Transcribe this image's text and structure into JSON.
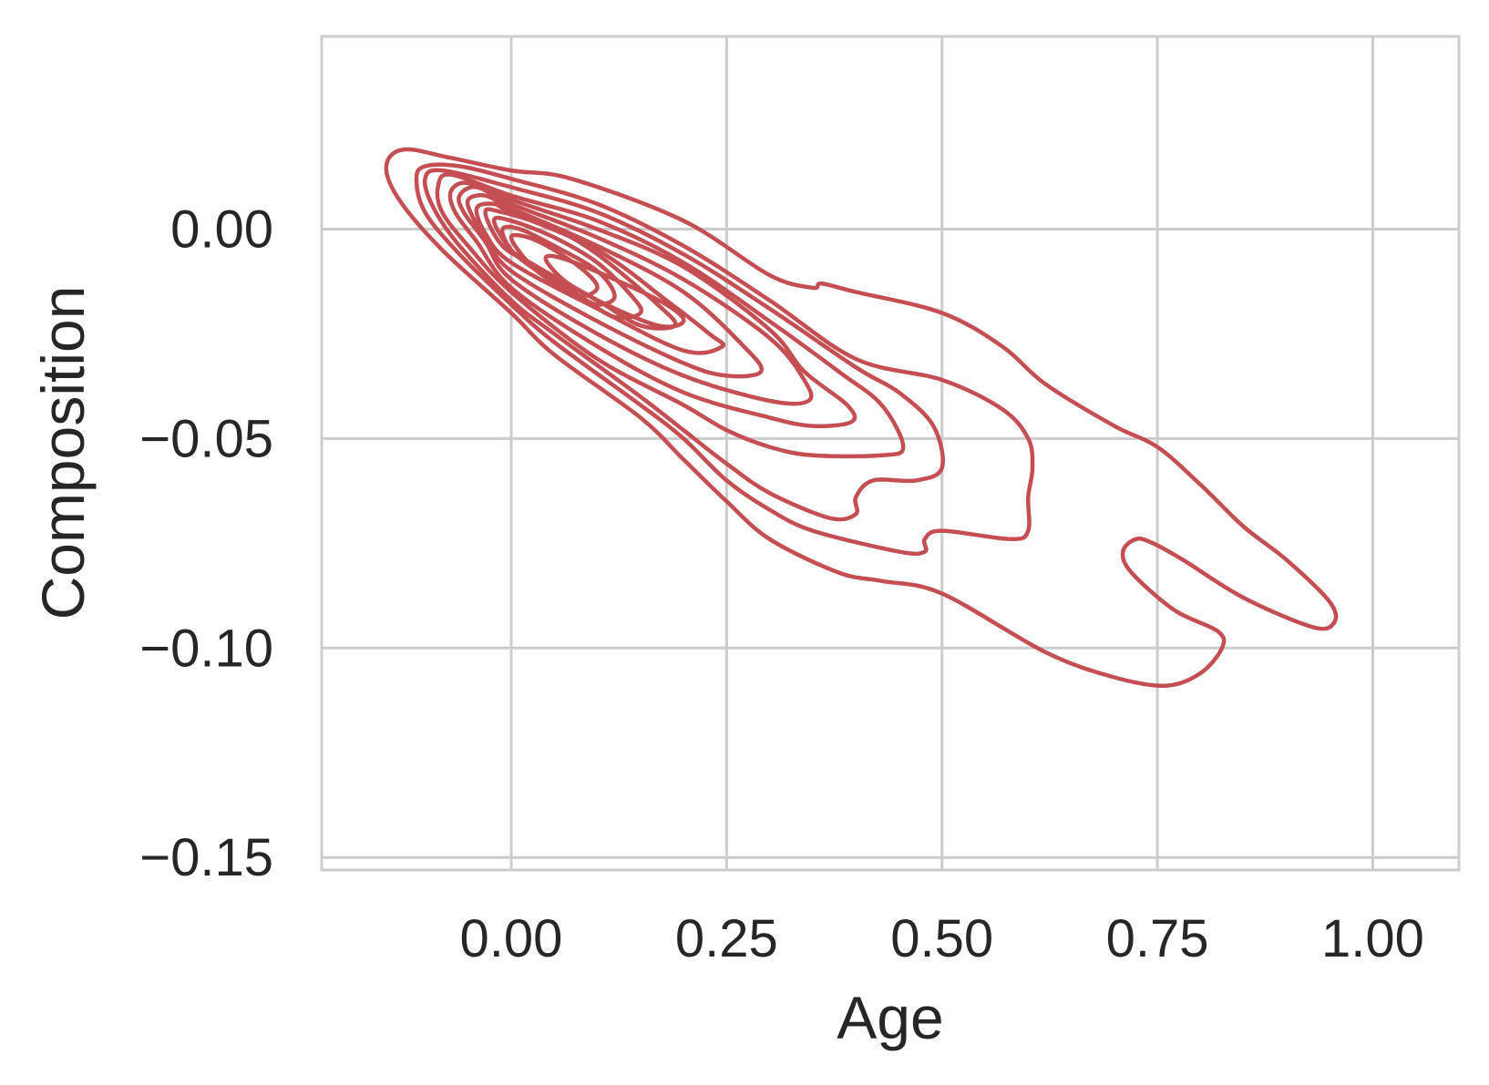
{
  "chart_data": {
    "type": "contour",
    "title": "",
    "xlabel": "Age",
    "ylabel": "Composition",
    "xlim": [
      -0.22,
      1.1
    ],
    "ylim": [
      -0.153,
      0.046
    ],
    "xticks": [
      0.0,
      0.25,
      0.5,
      0.75,
      1.0
    ],
    "xtick_labels": [
      "0.00",
      "0.25",
      "0.50",
      "0.75",
      "1.00"
    ],
    "yticks": [
      0.0,
      -0.05,
      -0.1,
      -0.15
    ],
    "ytick_labels": [
      "0.00",
      "−0.05",
      "−0.10",
      "−0.15"
    ],
    "grid": true,
    "line_color": "#c44e52",
    "levels": [
      {
        "level": 1,
        "points": [
          [
            -0.145,
            0.015
          ],
          [
            -0.125,
            0.019
          ],
          [
            -0.07,
            0.017
          ],
          [
            0.0,
            0.014
          ],
          [
            0.07,
            0.012
          ],
          [
            0.2,
            0.002
          ],
          [
            0.3,
            -0.011
          ],
          [
            0.35,
            -0.014
          ],
          [
            0.36,
            -0.013
          ],
          [
            0.4,
            -0.015
          ],
          [
            0.5,
            -0.02
          ],
          [
            0.57,
            -0.028
          ],
          [
            0.62,
            -0.037
          ],
          [
            0.7,
            -0.047
          ],
          [
            0.75,
            -0.052
          ],
          [
            0.8,
            -0.061
          ],
          [
            0.85,
            -0.071
          ],
          [
            0.9,
            -0.079
          ],
          [
            0.95,
            -0.089
          ],
          [
            0.955,
            -0.094
          ],
          [
            0.93,
            -0.095
          ],
          [
            0.85,
            -0.088
          ],
          [
            0.78,
            -0.079
          ],
          [
            0.745,
            -0.075
          ],
          [
            0.725,
            -0.074
          ],
          [
            0.71,
            -0.077
          ],
          [
            0.72,
            -0.082
          ],
          [
            0.77,
            -0.091
          ],
          [
            0.82,
            -0.096
          ],
          [
            0.825,
            -0.1
          ],
          [
            0.8,
            -0.106
          ],
          [
            0.76,
            -0.109
          ],
          [
            0.7,
            -0.107
          ],
          [
            0.62,
            -0.101
          ],
          [
            0.5,
            -0.087
          ],
          [
            0.43,
            -0.084
          ],
          [
            0.38,
            -0.082
          ],
          [
            0.3,
            -0.074
          ],
          [
            0.25,
            -0.065
          ],
          [
            0.2,
            -0.055
          ],
          [
            0.15,
            -0.045
          ],
          [
            0.05,
            -0.03
          ],
          [
            0.0,
            -0.02
          ],
          [
            -0.08,
            -0.005
          ],
          [
            -0.13,
            0.007
          ],
          [
            -0.145,
            0.015
          ]
        ]
      },
      {
        "level": 2,
        "points": [
          [
            -0.11,
            0.012
          ],
          [
            -0.1,
            0.015
          ],
          [
            -0.06,
            0.015
          ],
          [
            0.0,
            0.012
          ],
          [
            0.1,
            0.006
          ],
          [
            0.2,
            -0.004
          ],
          [
            0.3,
            -0.017
          ],
          [
            0.4,
            -0.031
          ],
          [
            0.5,
            -0.036
          ],
          [
            0.57,
            -0.043
          ],
          [
            0.6,
            -0.05
          ],
          [
            0.605,
            -0.057
          ],
          [
            0.6,
            -0.064
          ],
          [
            0.6,
            -0.072
          ],
          [
            0.58,
            -0.074
          ],
          [
            0.5,
            -0.072
          ],
          [
            0.48,
            -0.074
          ],
          [
            0.48,
            -0.077
          ],
          [
            0.45,
            -0.077
          ],
          [
            0.35,
            -0.072
          ],
          [
            0.3,
            -0.067
          ],
          [
            0.25,
            -0.06
          ],
          [
            0.2,
            -0.05
          ],
          [
            0.15,
            -0.042
          ],
          [
            0.05,
            -0.027
          ],
          [
            0.0,
            -0.018
          ],
          [
            -0.06,
            -0.006
          ],
          [
            -0.1,
            0.004
          ],
          [
            -0.11,
            0.012
          ]
        ]
      },
      {
        "level": 3,
        "points": [
          [
            -0.1,
            0.012
          ],
          [
            -0.08,
            0.014
          ],
          [
            0.0,
            0.01
          ],
          [
            0.1,
            0.004
          ],
          [
            0.2,
            -0.006
          ],
          [
            0.3,
            -0.019
          ],
          [
            0.4,
            -0.033
          ],
          [
            0.45,
            -0.039
          ],
          [
            0.49,
            -0.047
          ],
          [
            0.5,
            -0.057
          ],
          [
            0.47,
            -0.06
          ],
          [
            0.42,
            -0.06
          ],
          [
            0.4,
            -0.064
          ],
          [
            0.4,
            -0.068
          ],
          [
            0.37,
            -0.069
          ],
          [
            0.3,
            -0.063
          ],
          [
            0.25,
            -0.056
          ],
          [
            0.2,
            -0.048
          ],
          [
            0.15,
            -0.04
          ],
          [
            0.05,
            -0.025
          ],
          [
            0.0,
            -0.017
          ],
          [
            -0.06,
            -0.004
          ],
          [
            -0.09,
            0.005
          ],
          [
            -0.1,
            0.012
          ]
        ]
      },
      {
        "level": 4,
        "points": [
          [
            -0.085,
            0.01
          ],
          [
            -0.07,
            0.013
          ],
          [
            0.0,
            0.008
          ],
          [
            0.1,
            0.002
          ],
          [
            0.2,
            -0.008
          ],
          [
            0.3,
            -0.022
          ],
          [
            0.38,
            -0.034
          ],
          [
            0.43,
            -0.042
          ],
          [
            0.455,
            -0.052
          ],
          [
            0.43,
            -0.054
          ],
          [
            0.35,
            -0.054
          ],
          [
            0.3,
            -0.052
          ],
          [
            0.25,
            -0.048
          ],
          [
            0.2,
            -0.042
          ],
          [
            0.1,
            -0.031
          ],
          [
            0.0,
            -0.015
          ],
          [
            -0.05,
            -0.004
          ],
          [
            -0.08,
            0.004
          ],
          [
            -0.085,
            0.01
          ]
        ]
      },
      {
        "level": 5,
        "points": [
          [
            -0.07,
            0.009
          ],
          [
            -0.05,
            0.011
          ],
          [
            0.0,
            0.007
          ],
          [
            0.1,
            0.0
          ],
          [
            0.2,
            -0.009
          ],
          [
            0.3,
            -0.024
          ],
          [
            0.34,
            -0.034
          ],
          [
            0.39,
            -0.042
          ],
          [
            0.395,
            -0.046
          ],
          [
            0.35,
            -0.047
          ],
          [
            0.3,
            -0.045
          ],
          [
            0.2,
            -0.039
          ],
          [
            0.1,
            -0.028
          ],
          [
            0.0,
            -0.014
          ],
          [
            -0.04,
            -0.003
          ],
          [
            -0.065,
            0.004
          ],
          [
            -0.07,
            0.009
          ]
        ]
      },
      {
        "level": 6,
        "points": [
          [
            -0.06,
            0.008
          ],
          [
            -0.04,
            0.01
          ],
          [
            0.0,
            0.006
          ],
          [
            0.1,
            -0.002
          ],
          [
            0.2,
            -0.012
          ],
          [
            0.3,
            -0.026
          ],
          [
            0.34,
            -0.036
          ],
          [
            0.345,
            -0.041
          ],
          [
            0.3,
            -0.041
          ],
          [
            0.2,
            -0.035
          ],
          [
            0.1,
            -0.025
          ],
          [
            0.0,
            -0.012
          ],
          [
            -0.03,
            -0.003
          ],
          [
            -0.055,
            0.004
          ],
          [
            -0.06,
            0.008
          ]
        ]
      },
      {
        "level": 7,
        "points": [
          [
            -0.05,
            0.007
          ],
          [
            -0.03,
            0.008
          ],
          [
            0.0,
            0.005
          ],
          [
            0.1,
            -0.004
          ],
          [
            0.2,
            -0.015
          ],
          [
            0.27,
            -0.028
          ],
          [
            0.29,
            -0.034
          ],
          [
            0.25,
            -0.035
          ],
          [
            0.2,
            -0.032
          ],
          [
            0.1,
            -0.022
          ],
          [
            0.0,
            -0.01
          ],
          [
            -0.03,
            -0.002
          ],
          [
            -0.045,
            0.003
          ],
          [
            -0.05,
            0.007
          ]
        ]
      },
      {
        "level": 8,
        "points": [
          [
            -0.04,
            0.005
          ],
          [
            -0.02,
            0.006
          ],
          [
            0.0,
            0.004
          ],
          [
            0.1,
            -0.005
          ],
          [
            0.18,
            -0.017
          ],
          [
            0.23,
            -0.025
          ],
          [
            0.245,
            -0.028
          ],
          [
            0.2,
            -0.029
          ],
          [
            0.1,
            -0.019
          ],
          [
            0.0,
            -0.008
          ],
          [
            -0.03,
            -0.001
          ],
          [
            -0.04,
            0.005
          ]
        ]
      },
      {
        "level": 9,
        "points": [
          [
            -0.03,
            0.004
          ],
          [
            -0.01,
            0.004
          ],
          [
            0.05,
            0.0
          ],
          [
            0.1,
            -0.006
          ],
          [
            0.17,
            -0.018
          ],
          [
            0.19,
            -0.023
          ],
          [
            0.15,
            -0.023
          ],
          [
            0.1,
            -0.017
          ],
          [
            0.03,
            -0.009
          ],
          [
            -0.01,
            -0.004
          ],
          [
            -0.03,
            0.004
          ]
        ]
      },
      {
        "level": 10,
        "points": [
          [
            -0.02,
            0.002
          ],
          [
            0.0,
            0.002
          ],
          [
            0.05,
            -0.002
          ],
          [
            0.1,
            -0.008
          ],
          [
            0.14,
            -0.016
          ],
          [
            0.15,
            -0.02
          ],
          [
            0.12,
            -0.021
          ],
          [
            0.08,
            -0.016
          ],
          [
            0.03,
            -0.009
          ],
          [
            0.0,
            -0.005
          ],
          [
            -0.02,
            0.002
          ]
        ]
      },
      {
        "level": 11,
        "points": [
          [
            -0.01,
            0.0
          ],
          [
            0.01,
            0.0
          ],
          [
            0.05,
            -0.004
          ],
          [
            0.1,
            -0.01
          ],
          [
            0.12,
            -0.016
          ],
          [
            0.1,
            -0.018
          ],
          [
            0.07,
            -0.015
          ],
          [
            0.03,
            -0.01
          ],
          [
            0.0,
            -0.005
          ],
          [
            -0.01,
            0.0
          ]
        ]
      },
      {
        "level": 12,
        "points": [
          [
            0.0,
            -0.002
          ],
          [
            0.02,
            -0.002
          ],
          [
            0.05,
            -0.005
          ],
          [
            0.085,
            -0.01
          ],
          [
            0.1,
            -0.014
          ],
          [
            0.08,
            -0.016
          ],
          [
            0.05,
            -0.013
          ],
          [
            0.02,
            -0.008
          ],
          [
            0.0,
            -0.002
          ]
        ]
      },
      {
        "level": 13,
        "points": [
          [
            0.04,
            -0.007
          ],
          [
            0.06,
            -0.007
          ],
          [
            0.12,
            -0.012
          ],
          [
            0.18,
            -0.018
          ],
          [
            0.2,
            -0.022
          ],
          [
            0.17,
            -0.023
          ],
          [
            0.1,
            -0.017
          ],
          [
            0.06,
            -0.012
          ],
          [
            0.04,
            -0.007
          ]
        ]
      }
    ]
  }
}
